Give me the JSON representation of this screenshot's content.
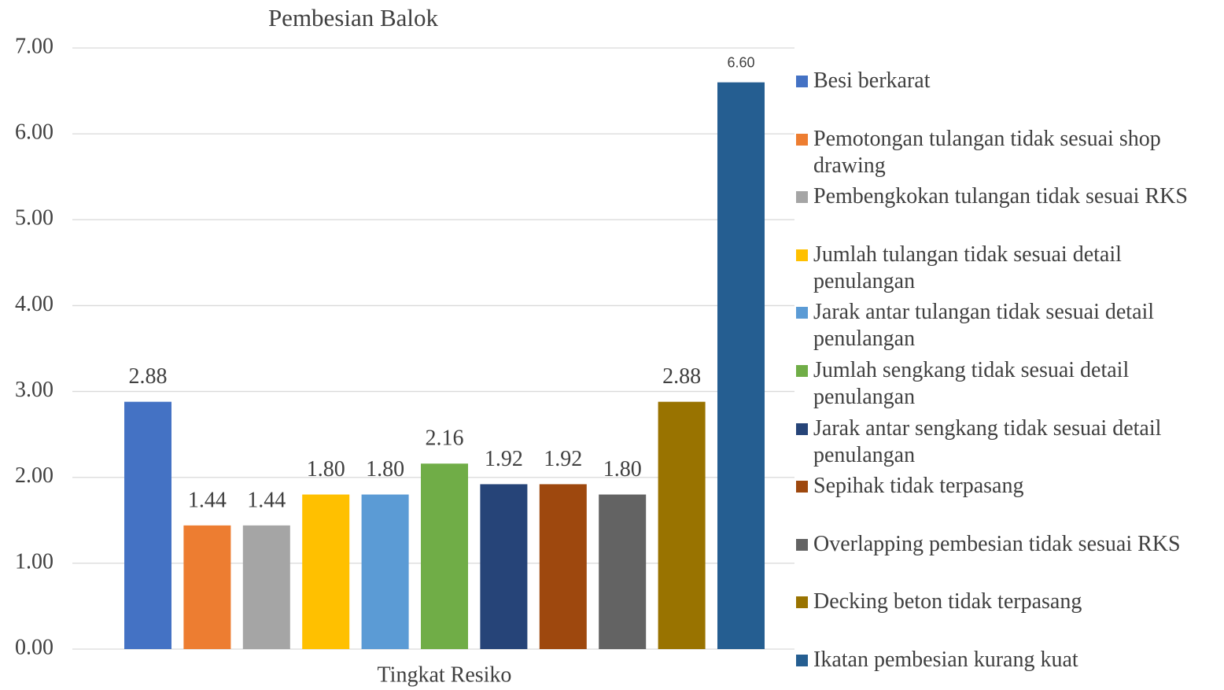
{
  "chart_data": {
    "type": "bar",
    "title": "Pembesian Balok",
    "x_label": "Tingkat Resiko",
    "categories": [
      "Tingkat Resiko"
    ],
    "ylim": [
      0,
      7
    ],
    "yticks": [
      {
        "value": 0,
        "label": "0.00"
      },
      {
        "value": 1,
        "label": "1.00"
      },
      {
        "value": 2,
        "label": "2.00"
      },
      {
        "value": 3,
        "label": "3.00"
      },
      {
        "value": 4,
        "label": "4.00"
      },
      {
        "value": 5,
        "label": "5.00"
      },
      {
        "value": 6,
        "label": "6.00"
      },
      {
        "value": 7,
        "label": "7.00"
      }
    ],
    "grid": true,
    "legend": "right",
    "series": [
      {
        "name": "Besi berkarat",
        "color": "#4472c4",
        "values": [
          2.88
        ],
        "value_labels": [
          "2.88"
        ]
      },
      {
        "name": "Pemotongan tulangan tidak sesuai shop drawing",
        "color": "#ed7d31",
        "values": [
          1.44
        ],
        "value_labels": [
          "1.44"
        ]
      },
      {
        "name": "Pembengkokan tulangan tidak sesuai RKS",
        "color": "#a5a5a5",
        "values": [
          1.44
        ],
        "value_labels": [
          "1.44"
        ]
      },
      {
        "name": "Jumlah tulangan tidak sesuai detail penulangan",
        "color": "#ffc000",
        "values": [
          1.8
        ],
        "value_labels": [
          "1.80"
        ]
      },
      {
        "name": "Jarak antar tulangan tidak sesuai detail penulangan",
        "color": "#5b9bd5",
        "values": [
          1.8
        ],
        "value_labels": [
          "1.80"
        ]
      },
      {
        "name": "Jumlah sengkang tidak sesuai detail penulangan",
        "color": "#70ad47",
        "values": [
          2.16
        ],
        "value_labels": [
          "2.16"
        ]
      },
      {
        "name": "Jarak antar sengkang tidak sesuai detail penulangan",
        "color": "#264478",
        "values": [
          1.92
        ],
        "value_labels": [
          "1.92"
        ]
      },
      {
        "name": "Sepihak tidak terpasang",
        "color": "#9e480e",
        "values": [
          1.92
        ],
        "value_labels": [
          "1.92"
        ]
      },
      {
        "name": "Overlapping pembesian tidak sesuai RKS",
        "color": "#636363",
        "values": [
          1.8
        ],
        "value_labels": [
          "1.80"
        ]
      },
      {
        "name": "Decking beton tidak terpasang",
        "color": "#997300",
        "values": [
          2.88
        ],
        "value_labels": [
          "2.88"
        ]
      },
      {
        "name": "Ikatan pembesian kurang kuat",
        "color": "#255e91",
        "values": [
          6.6
        ],
        "value_labels": [
          "6.60"
        ]
      }
    ]
  }
}
